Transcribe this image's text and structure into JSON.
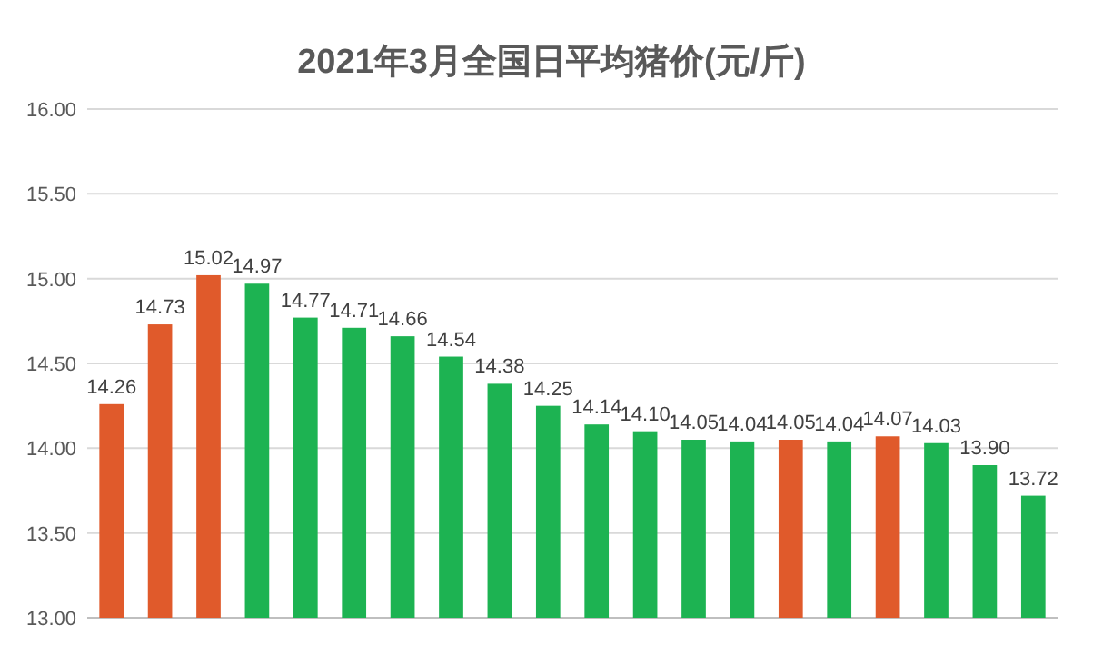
{
  "chart_data": {
    "type": "bar",
    "title": "2021年3月全国日平均猪价(元/斤)",
    "categories": [
      null,
      null,
      null,
      null,
      null,
      null,
      null,
      null,
      null,
      null,
      null,
      null,
      null,
      null,
      null,
      null,
      null,
      null,
      null,
      null
    ],
    "values": [
      14.26,
      14.73,
      15.02,
      14.97,
      14.77,
      14.71,
      14.66,
      14.54,
      14.38,
      14.25,
      14.14,
      14.1,
      14.05,
      14.04,
      14.05,
      14.04,
      14.07,
      14.03,
      13.9,
      13.72
    ],
    "value_labels": [
      "14.26",
      "14.73",
      "15.02",
      "14.97",
      "14.77",
      "14.71",
      "14.66",
      "14.54",
      "14.38",
      "14.25",
      "14.14",
      "14.10",
      "14.05",
      "14.04",
      "14.05",
      "14.04",
      "14.07",
      "14.03",
      "13.90",
      "13.72"
    ],
    "colors": [
      "#e05a2b",
      "#e05a2b",
      "#e05a2b",
      "#1db352",
      "#1db352",
      "#1db352",
      "#1db352",
      "#1db352",
      "#1db352",
      "#1db352",
      "#1db352",
      "#1db352",
      "#1db352",
      "#1db352",
      "#e05a2b",
      "#1db352",
      "#e05a2b",
      "#1db352",
      "#1db352",
      "#1db352"
    ],
    "ylim": [
      13,
      16
    ],
    "yticks": [
      {
        "value": 13,
        "label": "13.00"
      },
      {
        "value": 13.5,
        "label": "13.50"
      },
      {
        "value": 14,
        "label": "14.00"
      },
      {
        "value": 14.5,
        "label": "14.50"
      },
      {
        "value": 15,
        "label": "15.00"
      },
      {
        "value": 15.5,
        "label": "15.50"
      },
      {
        "value": 16,
        "label": "16.00"
      }
    ],
    "grid": "y"
  }
}
